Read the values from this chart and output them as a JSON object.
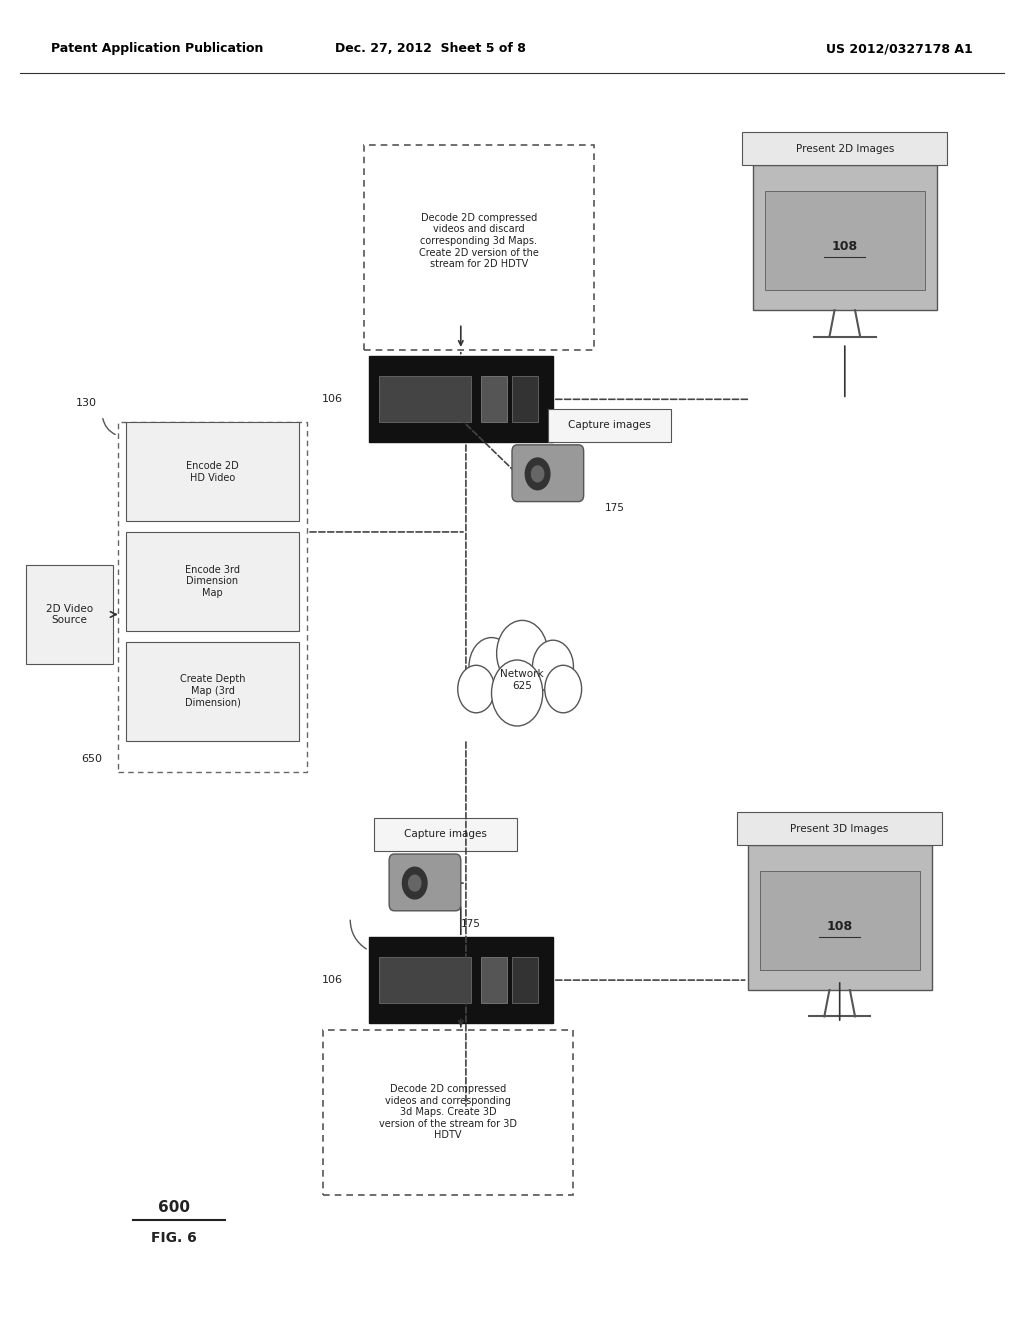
{
  "bg_color": "#ffffff",
  "header_left": "Patent Application Publication",
  "header_mid": "Dec. 27, 2012  Sheet 5 of 8",
  "header_right": "US 2012/0327178 A1"
}
